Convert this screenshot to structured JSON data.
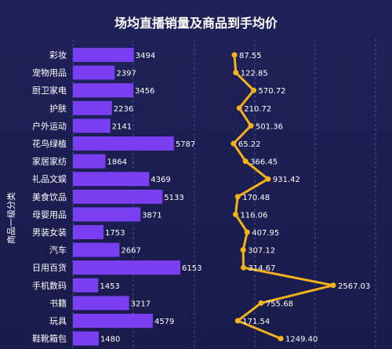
{
  "title": "场均直播销量及商品到手均价",
  "ylabel": "商品一级分类",
  "colors": {
    "bar": "#7b3ff2",
    "line": "#f5b21a",
    "text": "#ffffff",
    "grid": "#4a4f9a"
  },
  "chart_data": [
    {
      "type": "bar",
      "orientation": "horizontal",
      "categories": [
        "彩妆",
        "宠物用品",
        "厨卫家电",
        "护肤",
        "户外运动",
        "花鸟绿植",
        "家居家纺",
        "礼品文娱",
        "美食饮品",
        "母婴用品",
        "男装女装",
        "汽车",
        "日用百货",
        "手机数码",
        "书籍",
        "玩具",
        "鞋靴箱包"
      ],
      "values": [
        3494,
        2397,
        3456,
        2236,
        2141,
        5787,
        1864,
        4369,
        5133,
        3871,
        1753,
        2667,
        6153,
        1453,
        3217,
        4579,
        1480
      ],
      "xlim": [
        0,
        6500
      ]
    },
    {
      "type": "line",
      "orientation": "horizontal",
      "categories": [
        "彩妆",
        "宠物用品",
        "厨卫家电",
        "护肤",
        "户外运动",
        "花鸟绿植",
        "家居家纺",
        "礼品文娱",
        "美食饮品",
        "母婴用品",
        "男装女装",
        "汽车",
        "日用百货",
        "手机数码",
        "书籍",
        "玩具",
        "鞋靴箱包"
      ],
      "values": [
        87.55,
        122.85,
        570.72,
        210.72,
        501.36,
        65.22,
        366.45,
        931.42,
        170.48,
        116.06,
        407.95,
        307.12,
        314.67,
        2567.03,
        755.68,
        171.54,
        1249.4
      ],
      "labels": [
        "87.55",
        "122.85",
        "570.72",
        "210.72",
        "501.36",
        "65.22",
        "366.45",
        "931.42",
        "170.48",
        "116.06",
        "407.95",
        "307.12",
        "314.67",
        "2567.03",
        "755.68",
        "171.54",
        "1249.40"
      ],
      "xlim": [
        0,
        2700
      ]
    }
  ]
}
